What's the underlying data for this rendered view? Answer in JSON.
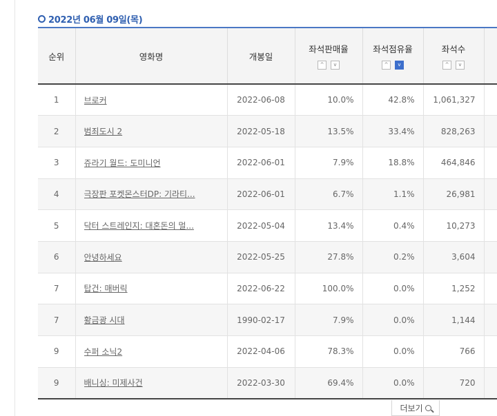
{
  "date_heading": "2022년 06월 09일(목)",
  "columns": {
    "rank": "순위",
    "title": "영화명",
    "release": "개봉일",
    "sales_rate": "좌석판매율",
    "share_rate": "좌석점유율",
    "seats": "좌석수",
    "extra": ""
  },
  "sort_icons": {
    "up": "^",
    "down": "v"
  },
  "active_sort": "share_rate-down",
  "rows": [
    {
      "rank": "1",
      "title": "브로커",
      "release": "2022-06-08",
      "sales_rate": "10.0%",
      "share_rate": "42.8%",
      "seats": "1,061,327"
    },
    {
      "rank": "2",
      "title": "범죄도시 2",
      "release": "2022-05-18",
      "sales_rate": "13.5%",
      "share_rate": "33.4%",
      "seats": "828,263"
    },
    {
      "rank": "3",
      "title": "쥬라기 월드: 도미니언",
      "release": "2022-06-01",
      "sales_rate": "7.9%",
      "share_rate": "18.8%",
      "seats": "464,846"
    },
    {
      "rank": "4",
      "title": "극장판 포켓몬스터DP: 기라티...",
      "release": "2022-06-01",
      "sales_rate": "6.7%",
      "share_rate": "1.1%",
      "seats": "26,981"
    },
    {
      "rank": "5",
      "title": "닥터 스트레인지: 대혼돈의 멀...",
      "release": "2022-05-04",
      "sales_rate": "13.4%",
      "share_rate": "0.4%",
      "seats": "10,273"
    },
    {
      "rank": "6",
      "title": "안녕하세요",
      "release": "2022-05-25",
      "sales_rate": "27.8%",
      "share_rate": "0.2%",
      "seats": "3,604"
    },
    {
      "rank": "7",
      "title": "탑건: 매버릭",
      "release": "2022-06-22",
      "sales_rate": "100.0%",
      "share_rate": "0.0%",
      "seats": "1,252"
    },
    {
      "rank": "7",
      "title": "황금광 시대",
      "release": "1990-02-17",
      "sales_rate": "7.9%",
      "share_rate": "0.0%",
      "seats": "1,144"
    },
    {
      "rank": "9",
      "title": "수퍼 소닉2",
      "release": "2022-04-06",
      "sales_rate": "78.3%",
      "share_rate": "0.0%",
      "seats": "766"
    },
    {
      "rank": "9",
      "title": "배니싱: 미제사건",
      "release": "2022-03-30",
      "sales_rate": "69.4%",
      "share_rate": "0.0%",
      "seats": "720"
    }
  ],
  "more_button": "더보기",
  "icons": {
    "more": "search-icon",
    "date": "circle-icon"
  },
  "colors": {
    "accent": "#2f5fb0",
    "active_sort": "#3d6fcc"
  }
}
